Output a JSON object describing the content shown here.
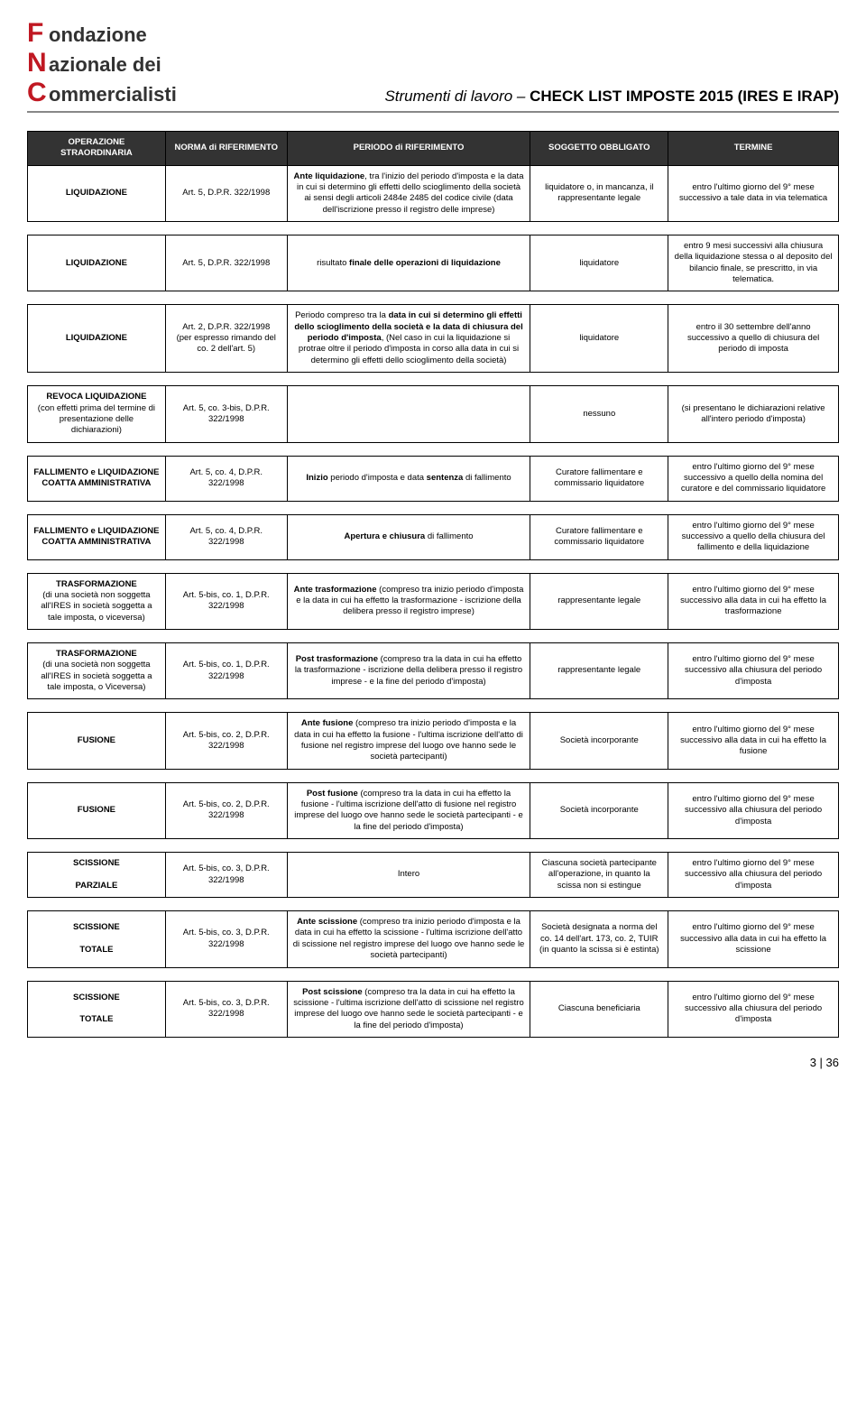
{
  "logo": {
    "l1_letter": "F",
    "l1_word": "ondazione",
    "l2_letter": "N",
    "l2_word": "azionale dei",
    "l3_letter": "C",
    "l3_word": "ommercialisti"
  },
  "header_title_italic": "Strumenti di lavoro – ",
  "header_title_bold": "CHECK LIST IMPOSTE 2015 (IRES E IRAP)",
  "columns": {
    "op": "OPERAZIONE STRAORDINARIA",
    "norm": "NORMA di RIFERIMENTO",
    "per": "PERIODO di RIFERIMENTO",
    "sog": "SOGGETTO OBBLIGATO",
    "term": "TERMINE"
  },
  "rows": [
    {
      "op": "<span class='bold'>LIQUIDAZIONE</span>",
      "norm": "Art. 5, D.P.R. 322/1998",
      "per": "<span class='bold'>Ante liquidazione</span>, tra l'inizio del periodo d'imposta e la data in cui si determino gli effetti dello scioglimento della società ai sensi degli articoli 2484e 2485 del codice civile (data dell'iscrizione presso il registro delle imprese)",
      "sog": "liquidatore o, in mancanza, il rappresentante legale",
      "term": "entro l'ultimo giorno del 9° mese successivo a tale data in via telematica"
    },
    {
      "op": "<span class='bold'>LIQUIDAZIONE</span>",
      "norm": "Art. 5, D.P.R. 322/1998",
      "per": "risultato <span class='bold'>finale delle operazioni di liquidazione</span>",
      "sog": "liquidatore",
      "term": "entro 9 mesi successivi alla chiusura della liquidazione stessa o al deposito del bilancio finale, se prescritto, in via telematica."
    },
    {
      "op": "<span class='bold'>LIQUIDAZIONE</span>",
      "norm": "Art. 2, D.P.R. 322/1998<br>(per espresso rimando del co. 2 dell'art. 5)",
      "per": "Periodo compreso tra la <span class='bold'>data in cui si determino gli effetti dello scioglimento della società e la data di chiusura del periodo d'imposta</span>, (Nel caso in cui la liquidazione si protrae oltre il periodo d'imposta in corso alla data in cui si determino gli effetti dello scioglimento della società)",
      "sog": "liquidatore",
      "term": "entro il 30 settembre dell'anno successivo a quello di chiusura del periodo di imposta"
    },
    {
      "op": "<span class='bold'>REVOCA LIQUIDAZIONE</span><br>(con effetti prima del termine di presentazione delle dichiarazioni)",
      "norm": "Art. 5, co. 3-bis, D.P.R. 322/1998",
      "per": "",
      "sog": "nessuno",
      "term": "(si presentano le dichiarazioni relative all'intero periodo d'imposta)"
    },
    {
      "op": "<span class='bold'>FALLIMENTO e LIQUIDAZIONE COATTA AMMINISTRATIVA</span>",
      "norm": "Art. 5, co. 4, D.P.R. 322/1998",
      "per": "<span class='bold'>Inizio</span> periodo d'imposta e data <span class='bold'>sentenza</span> di fallimento",
      "sog": "Curatore fallimentare e commissario liquidatore",
      "term": "entro l'ultimo giorno del 9° mese successivo a quello della nomina del curatore e del commissario liquidatore"
    },
    {
      "op": "<span class='bold'>FALLIMENTO e LIQUIDAZIONE COATTA AMMINISTRATIVA</span>",
      "norm": "Art. 5, co. 4, D.P.R. 322/1998",
      "per": "<span class='bold'>Apertura e chiusura</span> di fallimento",
      "sog": "Curatore fallimentare e commissario liquidatore",
      "term": "entro l'ultimo giorno del 9° mese successivo a quello della chiusura del fallimento e della liquidazione"
    },
    {
      "op": "<span class='bold'>TRASFORMAZIONE</span><br>(di una società non soggetta all'IRES in società soggetta a tale imposta, o viceversa)",
      "norm": "Art. 5-bis, co. 1, D.P.R. 322/1998",
      "per": "<span class='bold'>Ante trasformazione</span> (compreso tra inizio periodo d'imposta e la data in cui ha effetto la trasformazione - iscrizione della delibera presso il registro imprese)",
      "sog": "rappresentante legale",
      "term": "entro l'ultimo giorno del 9° mese successivo alla data in cui ha effetto la trasformazione"
    },
    {
      "op": "<span class='bold'>TRASFORMAZIONE</span><br>(di una società non soggetta all'IRES in società soggetta a tale imposta, o Viceversa)",
      "norm": "Art. 5-bis, co. 1, D.P.R. 322/1998",
      "per": "<span class='bold'>Post trasformazione</span> (compreso tra la data in cui ha effetto la trasformazione - iscrizione della delibera presso il registro imprese - e la fine del periodo d'imposta)",
      "sog": "rappresentante legale",
      "term": "entro l'ultimo giorno del 9° mese successivo alla chiusura del periodo d'imposta"
    },
    {
      "op": "<span class='bold'>FUSIONE</span>",
      "norm": "Art. 5-bis, co. 2, D.P.R. 322/1998",
      "per": "<span class='bold'>Ante fusione</span> (compreso tra inizio periodo d'imposta e la data in cui ha effetto la fusione - l'ultima iscrizione dell'atto di fusione nel registro imprese del luogo ove hanno sede le società partecipanti)",
      "sog": "Società incorporante",
      "term": "entro l'ultimo giorno del 9° mese successivo alla data in cui ha effetto la fusione"
    },
    {
      "op": "<span class='bold'>FUSIONE</span>",
      "norm": "Art. 5-bis, co. 2, D.P.R. 322/1998",
      "per": "<span class='bold'>Post fusione</span> (compreso tra la data in cui ha effetto la fusione - l'ultima iscrizione dell'atto di fusione nel registro imprese del luogo ove hanno sede le società partecipanti - e la fine del periodo d'imposta)",
      "sog": "Società incorporante",
      "term": "entro l'ultimo giorno del 9° mese successivo alla chiusura del periodo d'imposta"
    },
    {
      "op": "<span class='bold'>SCISSIONE<br><br>PARZIALE</span>",
      "norm": "Art. 5-bis, co. 3, D.P.R. 322/1998",
      "per": "Intero",
      "sog": "Ciascuna società partecipante all'operazione, in quanto la scissa non si estingue",
      "term": "entro l'ultimo giorno del 9° mese successivo alla chiusura del periodo d'imposta"
    },
    {
      "op": "<span class='bold'>SCISSIONE<br><br>TOTALE</span>",
      "norm": "Art. 5-bis, co. 3, D.P.R. 322/1998",
      "per": "<span class='bold'>Ante scissione</span> (compreso tra inizio periodo d'imposta e la data in cui ha effetto la scissione - l'ultima iscrizione dell'atto di scissione nel registro imprese del luogo ove hanno sede le società partecipanti)",
      "sog": "Società designata a norma del co. 14 dell'art. 173, co. 2, TUIR (in quanto la scissa si è estinta)",
      "term": "entro l'ultimo giorno del 9° mese successivo alla data in cui ha effetto la scissione"
    },
    {
      "op": "<span class='bold'>SCISSIONE<br><br>TOTALE</span>",
      "norm": "Art. 5-bis, co. 3, D.P.R. 322/1998",
      "per": "<span class='bold'>Post scissione</span> (compreso tra la data in cui ha effetto la scissione - l'ultima iscrizione dell'atto di scissione nel registro imprese del luogo ove hanno sede le società partecipanti - e la fine del periodo d'imposta)",
      "sog": "Ciascuna beneficiaria",
      "term": "entro l'ultimo giorno del 9° mese successivo alla chiusura del periodo d'imposta"
    }
  ],
  "groups": [
    [
      0
    ],
    [
      1
    ],
    [
      2
    ],
    [
      3
    ],
    [
      4
    ],
    [
      5
    ],
    [
      6
    ],
    [
      7
    ],
    [
      8
    ],
    [
      9
    ],
    [
      10
    ],
    [
      11
    ],
    [
      12
    ]
  ],
  "footer": "3 | 36"
}
